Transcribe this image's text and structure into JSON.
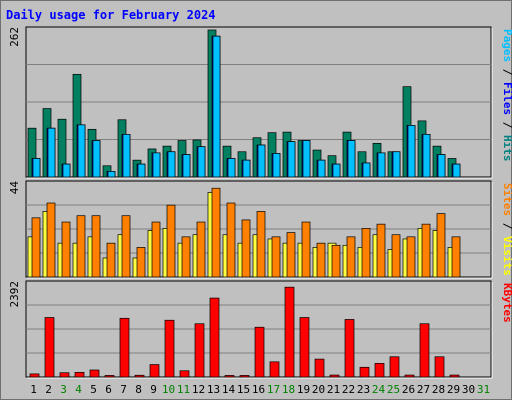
{
  "chart_data": {
    "type": "bar",
    "title": "Daily usage for February 2024",
    "x": [
      "1",
      "2",
      "3",
      "4",
      "5",
      "6",
      "7",
      "8",
      "9",
      "10",
      "11",
      "12",
      "13",
      "14",
      "15",
      "16",
      "17",
      "18",
      "19",
      "20",
      "21",
      "22",
      "23",
      "24",
      "25",
      "26",
      "27",
      "28",
      "29",
      "30",
      "31"
    ],
    "weekend_days": [
      "3",
      "4",
      "10",
      "11",
      "17",
      "18",
      "24",
      "25",
      "31"
    ],
    "panels": [
      {
        "id": "hits_files_pages",
        "ymax_label": "262",
        "ylim": [
          0,
          262
        ],
        "right_labels": [
          {
            "text": "Pages",
            "color": "#00bfff"
          },
          {
            "text": " / ",
            "color": "#000000"
          },
          {
            "text": "Files",
            "color": "#0000ff"
          },
          {
            "text": " / ",
            "color": "#000000"
          },
          {
            "text": "Hits",
            "color": "#008080"
          }
        ],
        "series": [
          {
            "name": "Hits",
            "color": "#008060",
            "values": [
              87,
              122,
              103,
              183,
              85,
              20,
              102,
              30,
              50,
              55,
              65,
              66,
              262,
              55,
              45,
              70,
              79,
              80,
              65,
              48,
              38,
              80,
              45,
              60,
              45,
              161,
              100,
              55,
              33,
              0,
              0
            ]
          },
          {
            "name": "Files",
            "color": "#0000ff",
            "values": [
              33,
              87,
              23,
              93,
              65,
              10,
              76,
              23,
              43,
              45,
              40,
              54,
              251,
              33,
              30,
              57,
              42,
              63,
              65,
              30,
              23,
              65,
              25,
              43,
              45,
              92,
              76,
              40,
              23,
              0,
              0
            ]
          },
          {
            "name": "Pages",
            "color": "#00c0ff",
            "values": [
              33,
              87,
              23,
              93,
              65,
              10,
              76,
              23,
              43,
              45,
              40,
              54,
              251,
              33,
              30,
              57,
              42,
              63,
              65,
              30,
              23,
              65,
              25,
              43,
              45,
              92,
              76,
              40,
              23,
              0,
              0
            ]
          }
        ]
      },
      {
        "id": "visits_sites",
        "ymax_label": "44",
        "ylim": [
          0,
          44
        ],
        "right_labels": [
          {
            "text": "Sites",
            "color": "#ff8000"
          },
          {
            "text": " / ",
            "color": "#000000"
          },
          {
            "text": "Visits",
            "color": "#ffff00"
          }
        ],
        "series": [
          {
            "name": "Visits",
            "color": "#ffff40",
            "values": [
              19,
              31,
              16,
              16,
              19,
              9,
              20,
              9,
              22,
              23,
              16,
              20,
              40,
              20,
              16,
              20,
              18,
              16,
              16,
              14,
              16,
              15,
              14,
              20,
              13,
              18,
              23,
              22,
              14,
              0,
              0
            ]
          },
          {
            "name": "Sites",
            "color": "#ff8000",
            "values": [
              28,
              35,
              26,
              29,
              29,
              16,
              29,
              14,
              26,
              34,
              19,
              26,
              42,
              35,
              27,
              31,
              19,
              21,
              26,
              16,
              15,
              19,
              23,
              25,
              20,
              19,
              25,
              30,
              19,
              0,
              0
            ]
          }
        ]
      },
      {
        "id": "kbytes",
        "ymax_label": "2392",
        "ylim": [
          0,
          2392
        ],
        "right_labels": [
          {
            "text": "KBytes",
            "color": "#ff0000"
          }
        ],
        "series": [
          {
            "name": "KBytes",
            "color": "#ff0000",
            "values": [
              80,
              1530,
              110,
              120,
              180,
              40,
              1510,
              45,
              320,
              1460,
              160,
              1370,
              2030,
              40,
              40,
              1280,
              390,
              2310,
              1530,
              460,
              50,
              1480,
              250,
              350,
              520,
              50,
              1370,
              520,
              50,
              0,
              0
            ]
          }
        ]
      }
    ]
  }
}
